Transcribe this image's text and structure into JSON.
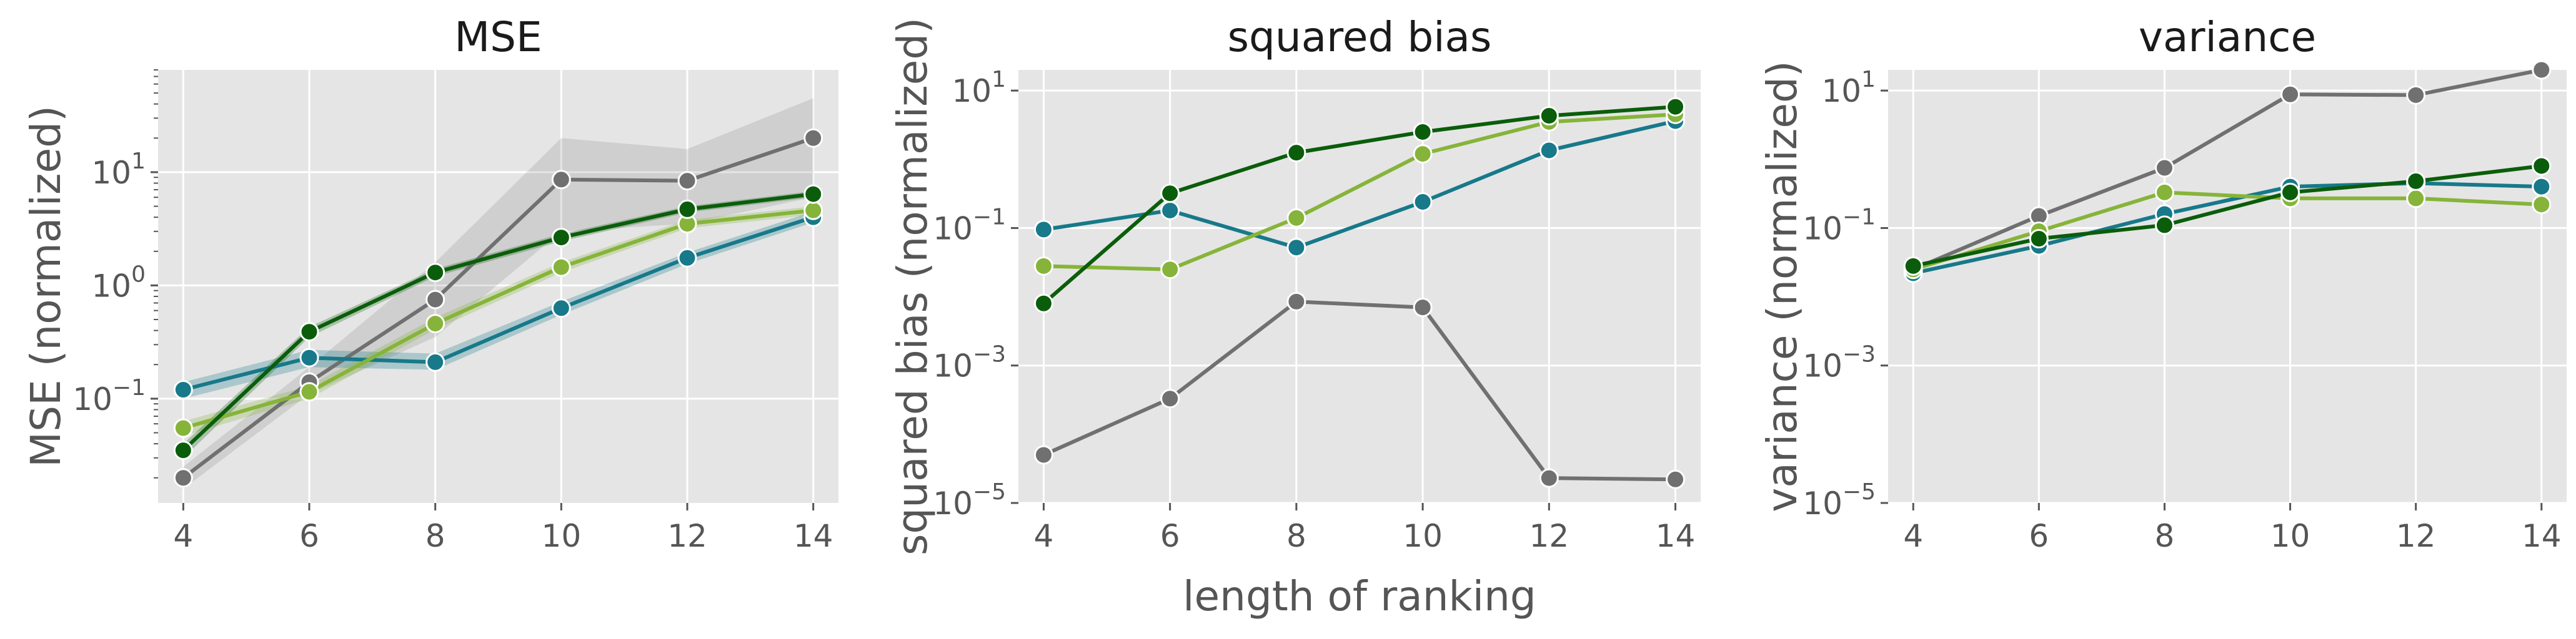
{
  "chart_data": {
    "shared_xlabel": "length of ranking",
    "colors": {
      "gray": "#707070",
      "dark_green": "#0b5d0b",
      "light_green": "#86b43a",
      "teal": "#17798a"
    },
    "panels": [
      {
        "type": "line",
        "title": "MSE",
        "ylabel": "MSE (normalized)",
        "xlabel": "",
        "yscale": "log",
        "x": [
          4,
          6,
          8,
          10,
          12,
          14
        ],
        "xticks": [
          "4",
          "6",
          "8",
          "10",
          "12",
          "14"
        ],
        "xlim": [
          3.6,
          14.4
        ],
        "ylim": [
          0.012,
          80
        ],
        "yticks": [
          {
            "value": 0.1,
            "base": "10",
            "exp": "−1"
          },
          {
            "value": 1,
            "base": "10",
            "exp": "0"
          },
          {
            "value": 10,
            "base": "10",
            "exp": "1"
          }
        ],
        "minor_ticks": true,
        "grid": true,
        "series": [
          {
            "color": "gray",
            "values": [
              0.02,
              0.14,
              0.75,
              8.6,
              8.4,
              20
            ],
            "band_low": [
              0.016,
              0.11,
              0.35,
              3.0,
              3.5,
              6.0
            ],
            "band_high": [
              0.025,
              0.19,
              1.6,
              20,
              16,
              45
            ]
          },
          {
            "color": "teal",
            "values": [
              0.12,
              0.23,
              0.21,
              0.63,
              1.75,
              4.0
            ],
            "band_low": [
              0.1,
              0.19,
              0.18,
              0.55,
              1.55,
              3.6
            ],
            "band_high": [
              0.14,
              0.27,
              0.25,
              0.72,
              1.95,
              4.5
            ]
          },
          {
            "color": "light_green",
            "values": [
              0.055,
              0.115,
              0.46,
              1.45,
              3.5,
              4.6
            ],
            "band_low": [
              0.047,
              0.1,
              0.41,
              1.3,
              3.2,
              4.2
            ],
            "band_high": [
              0.063,
              0.13,
              0.52,
              1.6,
              3.8,
              5.0
            ]
          },
          {
            "color": "dark_green",
            "values": [
              0.035,
              0.39,
              1.3,
              2.65,
              4.7,
              6.4
            ],
            "band_low": [
              0.03,
              0.35,
              1.2,
              2.45,
              4.4,
              6.0
            ],
            "band_high": [
              0.04,
              0.43,
              1.4,
              2.85,
              5.0,
              6.8
            ]
          }
        ]
      },
      {
        "type": "line",
        "title": "squared bias",
        "ylabel": "squared bias (normalized)",
        "xlabel": "",
        "yscale": "log",
        "x": [
          4,
          6,
          8,
          10,
          12,
          14
        ],
        "xticks": [
          "4",
          "6",
          "8",
          "10",
          "12",
          "14"
        ],
        "xlim": [
          3.6,
          14.4
        ],
        "ylim": [
          1e-05,
          20
        ],
        "yticks": [
          {
            "value": 1e-05,
            "base": "10",
            "exp": "−5"
          },
          {
            "value": 0.001,
            "base": "10",
            "exp": "−3"
          },
          {
            "value": 0.1,
            "base": "10",
            "exp": "−1"
          },
          {
            "value": 10,
            "base": "10",
            "exp": "1"
          }
        ],
        "minor_ticks": false,
        "grid": true,
        "series": [
          {
            "color": "gray",
            "values": [
              5e-05,
              0.00033,
              0.0085,
              0.007,
              2.3e-05,
              2.2e-05
            ]
          },
          {
            "color": "teal",
            "values": [
              0.095,
              0.18,
              0.052,
              0.24,
              1.35,
              3.6
            ]
          },
          {
            "color": "light_green",
            "values": [
              0.028,
              0.025,
              0.14,
              1.2,
              3.5,
              4.5
            ]
          },
          {
            "color": "dark_green",
            "values": [
              0.008,
              0.32,
              1.25,
              2.5,
              4.3,
              5.8
            ]
          }
        ]
      },
      {
        "type": "line",
        "title": "variance",
        "ylabel": "variance (normalized)",
        "xlabel": "",
        "yscale": "log",
        "x": [
          4,
          6,
          8,
          10,
          12,
          14
        ],
        "xticks": [
          "4",
          "6",
          "8",
          "10",
          "12",
          "14"
        ],
        "xlim": [
          3.6,
          14.4
        ],
        "ylim": [
          1e-05,
          20
        ],
        "yticks": [
          {
            "value": 1e-05,
            "base": "10",
            "exp": "−5"
          },
          {
            "value": 0.001,
            "base": "10",
            "exp": "−3"
          },
          {
            "value": 0.1,
            "base": "10",
            "exp": "−1"
          },
          {
            "value": 10,
            "base": "10",
            "exp": "1"
          }
        ],
        "minor_ticks": false,
        "grid": true,
        "series": [
          {
            "color": "gray",
            "values": [
              0.025,
              0.15,
              0.75,
              8.8,
              8.6,
              20
            ]
          },
          {
            "color": "teal",
            "values": [
              0.022,
              0.055,
              0.16,
              0.4,
              0.45,
              0.4
            ]
          },
          {
            "color": "light_green",
            "values": [
              0.025,
              0.09,
              0.33,
              0.27,
              0.27,
              0.22
            ]
          },
          {
            "color": "dark_green",
            "values": [
              0.028,
              0.07,
              0.11,
              0.33,
              0.48,
              0.8
            ]
          }
        ]
      }
    ]
  }
}
